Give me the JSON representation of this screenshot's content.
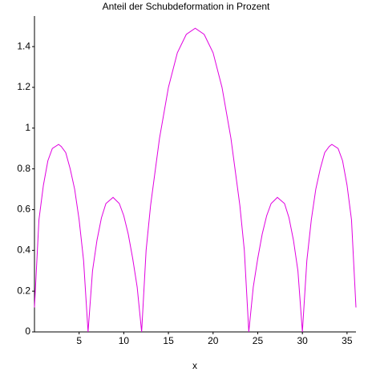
{
  "chart_data": {
    "type": "line",
    "title": "Anteil der Schubdeformation in Prozent",
    "x_label": "x",
    "x": [
      0,
      0.5,
      1,
      1.5,
      2,
      2.7,
      3,
      3.5,
      4,
      4.5,
      5,
      5.5,
      6,
      6.5,
      7,
      7.5,
      8,
      8.8,
      9.5,
      10,
      10.5,
      11,
      11.5,
      12,
      12.5,
      13,
      14,
      15,
      16,
      17,
      18,
      19,
      20,
      21,
      22,
      23,
      23.5,
      24,
      24.5,
      25,
      25.5,
      26,
      26.5,
      27.2,
      28,
      28.5,
      29,
      29.5,
      30,
      30.5,
      31,
      31.5,
      32,
      32.5,
      33,
      33.3,
      34,
      34.5,
      35,
      35.5,
      36
    ],
    "series": [
      {
        "name": "Anteil",
        "color": "#e000e0",
        "values": [
          0.12,
          0.55,
          0.72,
          0.84,
          0.9,
          0.92,
          0.91,
          0.88,
          0.8,
          0.7,
          0.55,
          0.35,
          0,
          0.3,
          0.45,
          0.56,
          0.63,
          0.66,
          0.63,
          0.57,
          0.48,
          0.36,
          0.22,
          0,
          0.4,
          0.62,
          0.95,
          1.2,
          1.37,
          1.46,
          1.49,
          1.46,
          1.37,
          1.2,
          0.95,
          0.62,
          0.4,
          0,
          0.22,
          0.36,
          0.48,
          0.57,
          0.63,
          0.66,
          0.63,
          0.56,
          0.45,
          0.3,
          0,
          0.35,
          0.55,
          0.7,
          0.8,
          0.88,
          0.91,
          0.92,
          0.9,
          0.84,
          0.72,
          0.55,
          0.12
        ]
      }
    ],
    "xlim": [
      0,
      36
    ],
    "xticks": [
      5,
      10,
      15,
      20,
      25,
      30,
      35
    ],
    "ylim": [
      0,
      1.55
    ],
    "yticks": [
      0,
      0.2,
      0.4,
      0.6,
      0.8,
      1,
      1.2,
      1.4
    ]
  }
}
